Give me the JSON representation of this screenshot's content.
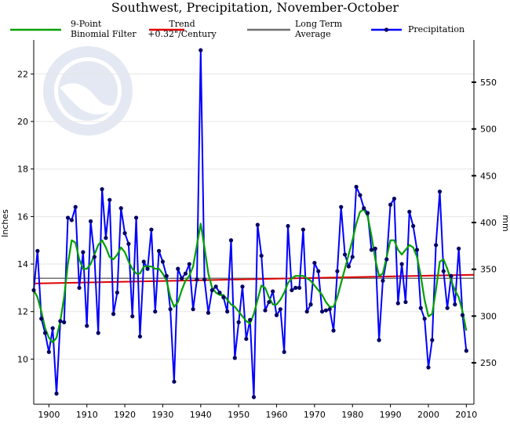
{
  "chart_data": {
    "type": "line",
    "title": "Southwest, Precipitation, November-October",
    "ylabel": "Inches",
    "ylabel_right": "mm",
    "xlim": [
      1896,
      2012
    ],
    "ylim": [
      8.1,
      23.3
    ],
    "x_ticks": [
      1900,
      1910,
      1920,
      1930,
      1940,
      1950,
      1960,
      1970,
      1980,
      1990,
      2000,
      2010
    ],
    "y_ticks_left": [
      10,
      12,
      14,
      16,
      18,
      20,
      22
    ],
    "y_ticks_right_mm": [
      250,
      300,
      350,
      400,
      450,
      500,
      550
    ],
    "grid": true,
    "legend_position": "top",
    "legend": [
      {
        "label_line1": "9-Point",
        "label_line2": "Binomial Filter",
        "color": "#00a000"
      },
      {
        "label_line1": "Trend",
        "label_line2": "+0.32\"/Century",
        "color": "#e00000"
      },
      {
        "label_line1": "Long Term",
        "label_line2": "Average",
        "color": "#707070"
      },
      {
        "label_line1": "Precipitation",
        "label_line2": "",
        "color": "#0000ff"
      }
    ],
    "series": [
      {
        "name": "Precipitation",
        "color": "#0000ff",
        "x_start": 1896,
        "values": [
          12.9,
          14.55,
          11.7,
          11.1,
          10.3,
          11.3,
          8.55,
          11.6,
          11.55,
          15.95,
          15.85,
          16.4,
          13.0,
          14.5,
          11.4,
          15.8,
          14.3,
          11.1,
          17.15,
          15.1,
          16.7,
          11.9,
          12.8,
          16.35,
          15.3,
          14.85,
          11.8,
          15.95,
          10.95,
          14.1,
          13.8,
          15.45,
          12.0,
          14.55,
          14.1,
          13.5,
          12.1,
          9.05,
          13.8,
          13.4,
          13.6,
          14.0,
          12.1,
          13.35,
          23.0,
          13.35,
          11.95,
          12.9,
          13.05,
          12.8,
          12.6,
          12.0,
          15.0,
          10.05,
          11.55,
          13.05,
          10.85,
          11.65,
          8.4,
          15.65,
          14.35,
          12.05,
          12.4,
          12.85,
          11.85,
          12.1,
          10.3,
          15.6,
          12.9,
          13.0,
          13.0,
          15.45,
          12.0,
          12.3,
          14.05,
          13.7,
          12.0,
          12.05,
          12.1,
          11.2,
          13.7,
          16.4,
          14.4,
          13.9,
          14.3,
          17.25,
          16.9,
          16.35,
          16.15,
          14.6,
          14.65,
          10.8,
          13.3,
          14.2,
          16.5,
          16.75,
          12.35,
          14.0,
          12.4,
          16.2,
          15.6,
          14.6,
          12.15,
          11.7,
          9.65,
          10.8,
          14.8,
          17.05,
          13.7,
          12.15,
          13.5,
          12.3,
          14.65,
          11.85,
          10.35
        ]
      },
      {
        "name": "9-Point Binomial Filter",
        "color": "#00a000",
        "x_start": 1896,
        "values": [
          12.9,
          12.6,
          12.0,
          11.3,
          10.9,
          10.7,
          10.9,
          11.6,
          12.6,
          14.0,
          15.0,
          14.9,
          14.2,
          13.8,
          13.8,
          14.0,
          14.4,
          14.8,
          15.0,
          14.7,
          14.3,
          14.2,
          14.4,
          14.7,
          14.5,
          14.1,
          13.8,
          13.6,
          13.6,
          13.9,
          13.9,
          13.9,
          13.8,
          13.8,
          13.6,
          13.3,
          12.6,
          12.2,
          12.4,
          12.9,
          13.3,
          13.5,
          13.9,
          14.8,
          15.7,
          14.7,
          13.6,
          13.0,
          12.8,
          12.7,
          12.7,
          12.5,
          12.3,
          12.2,
          12.0,
          11.8,
          11.6,
          11.5,
          11.9,
          12.5,
          13.1,
          13.0,
          12.6,
          12.3,
          12.3,
          12.5,
          12.8,
          13.2,
          13.4,
          13.5,
          13.5,
          13.5,
          13.4,
          13.3,
          13.1,
          12.9,
          12.7,
          12.4,
          12.2,
          12.2,
          12.6,
          13.2,
          13.8,
          14.4,
          15.0,
          15.7,
          16.2,
          16.3,
          16.0,
          15.2,
          14.2,
          13.5,
          13.6,
          14.3,
          15.0,
          15.0,
          14.6,
          14.4,
          14.6,
          14.8,
          14.7,
          14.3,
          13.5,
          12.5,
          11.8,
          11.9,
          12.9,
          14.1,
          14.2,
          13.8,
          13.3,
          12.9,
          12.6,
          12.0,
          11.2
        ]
      }
    ],
    "trend": {
      "name": "Trend",
      "x": [
        1896,
        2012
      ],
      "y": [
        13.18,
        13.55
      ],
      "color": "#e00000"
    },
    "long_term_average": {
      "name": "Long Term Average",
      "value": 13.4,
      "color": "#707070"
    }
  }
}
